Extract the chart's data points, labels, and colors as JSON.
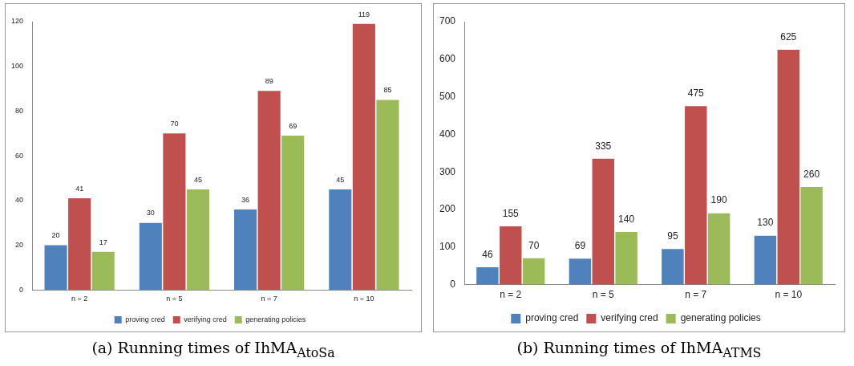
{
  "chart_data": [
    {
      "type": "bar",
      "title": "(a) Running times of IhMA$_{AtoSa}$",
      "categories": [
        "n = 2",
        "n = 5",
        "n = 7",
        "n = 10"
      ],
      "ylim": [
        0,
        120
      ],
      "yticks": [
        0,
        20,
        40,
        60,
        80,
        100,
        120
      ],
      "grid": false,
      "legend": "bottom",
      "data_labels": true,
      "series": [
        {
          "name": "proving cred",
          "color": "#4f81bd",
          "values": [
            20,
            30,
            36,
            45
          ]
        },
        {
          "name": "verifying cred",
          "color": "#c0504d",
          "values": [
            41,
            70,
            89,
            119
          ]
        },
        {
          "name": "generating policies",
          "color": "#9bbb59",
          "values": [
            17,
            45,
            69,
            85
          ]
        }
      ]
    },
    {
      "type": "bar",
      "title": "(b) Running times of IhMA$_{ATMS}$",
      "categories": [
        "n = 2",
        "n = 5",
        "n = 7",
        "n = 10"
      ],
      "ylim": [
        0,
        700
      ],
      "yticks": [
        0,
        100,
        200,
        300,
        400,
        500,
        600,
        700
      ],
      "grid": false,
      "legend": "bottom",
      "data_labels": true,
      "series": [
        {
          "name": "proving cred",
          "color": "#4f81bd",
          "values": [
            46,
            69,
            95,
            130
          ]
        },
        {
          "name": "verifying cred",
          "color": "#c0504d",
          "values": [
            155,
            335,
            475,
            625
          ]
        },
        {
          "name": "generating policies",
          "color": "#9bbb59",
          "values": [
            70,
            140,
            190,
            260
          ]
        }
      ]
    }
  ]
}
